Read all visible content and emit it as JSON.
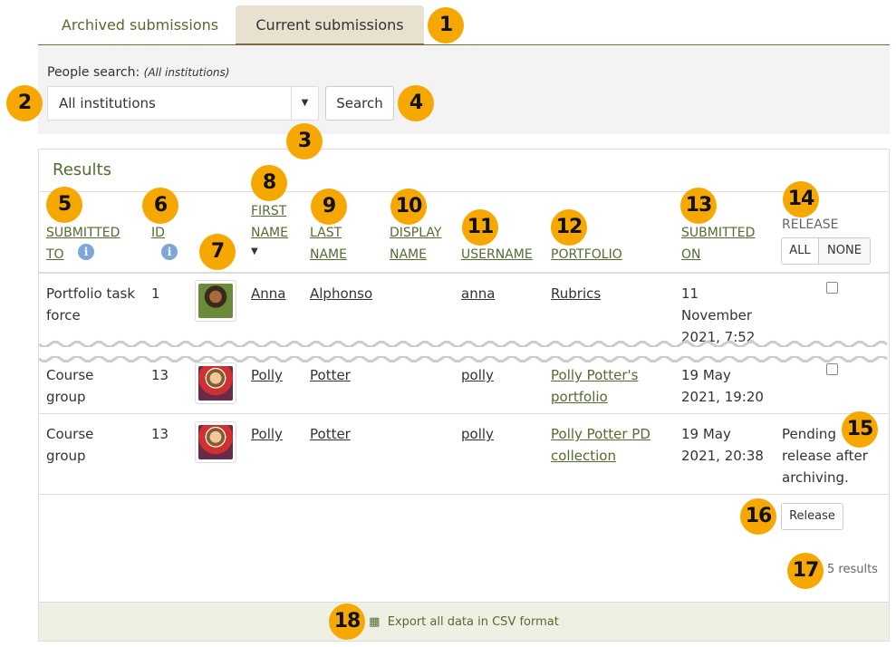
{
  "tabs": [
    {
      "label": "Archived submissions",
      "active": false
    },
    {
      "label": "Current submissions",
      "active": true
    }
  ],
  "search": {
    "label": "People search:",
    "scope": "(All institutions)",
    "select_value": "All institutions",
    "button": "Search"
  },
  "results": {
    "title": "Results",
    "count": "5 results",
    "release_button": "Release",
    "export": "Export all data in CSV format"
  },
  "columns": {
    "submitted_to": [
      "SUBMITTED",
      "TO"
    ],
    "id": "ID",
    "first_name": [
      "FIRST",
      "NAME"
    ],
    "last_name": [
      "LAST",
      "NAME"
    ],
    "display_name": [
      "DISPLAY",
      "NAME"
    ],
    "username": "USERNAME",
    "portfolio": "PORTFOLIO",
    "submitted_on": [
      "SUBMITTED",
      "ON"
    ],
    "release": "RELEASE",
    "all": "ALL",
    "none": "NONE"
  },
  "rows": [
    {
      "submitted_to": [
        "Portfolio task",
        "force"
      ],
      "id": "1",
      "first": "Anna",
      "last": "Alphonso",
      "username": "anna",
      "portfolio": [
        "Rubrics"
      ],
      "submitted_on": [
        "11",
        "November",
        "2021, 7:52"
      ],
      "release": "checkbox"
    },
    {
      "submitted_to": [
        "Course",
        "group"
      ],
      "id": "13",
      "first": "Polly",
      "last": "Potter",
      "username": "polly",
      "portfolio": [
        "Polly Potter's",
        "portfolio"
      ],
      "submitted_on": [
        "19 May",
        "2021, 19:20"
      ],
      "release": "checkbox"
    },
    {
      "submitted_to": [
        "Course",
        "group"
      ],
      "id": "13",
      "first": "Polly",
      "last": "Potter",
      "username": "polly",
      "portfolio": [
        "Polly Potter PD",
        "collection"
      ],
      "submitted_on": [
        "19 May",
        "2021, 20:38"
      ],
      "release": [
        "Pending",
        "release after",
        "archiving."
      ]
    }
  ],
  "badges": [
    "1",
    "2",
    "3",
    "4",
    "5",
    "6",
    "7",
    "8",
    "9",
    "10",
    "11",
    "12",
    "13",
    "14",
    "15",
    "16",
    "17",
    "18"
  ],
  "colors": {
    "accent": "#556b2f",
    "badge": "#f7a800",
    "active_tab": "#e8e1cf"
  }
}
